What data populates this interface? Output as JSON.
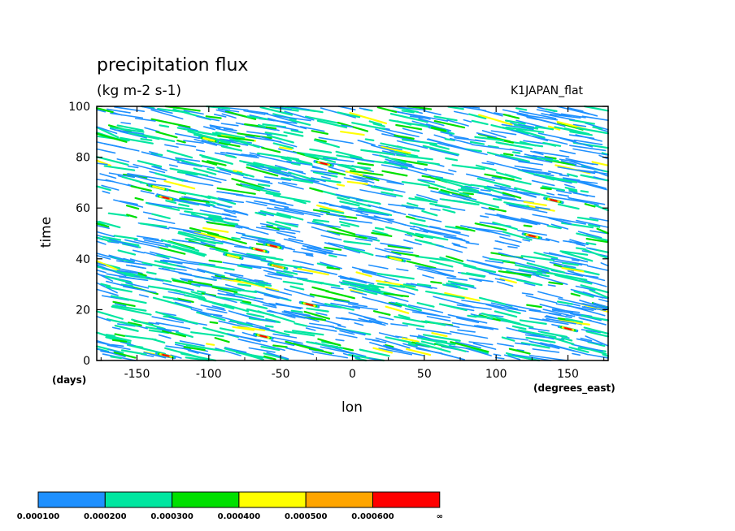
{
  "chart_data": {
    "type": "heatmap",
    "title": "precipitation flux",
    "subtitle": "(kg m-2 s-1)",
    "dataset_label": "K1JAPAN_flat",
    "xlabel": "lon",
    "xunit": "(degrees_east)",
    "ylabel": "time",
    "yunit": "(days)",
    "xlim": [
      -178,
      178
    ],
    "ylim": [
      0,
      100
    ],
    "x_ticks": [
      -150,
      -100,
      -50,
      0,
      50,
      100,
      150
    ],
    "y_ticks": [
      0,
      20,
      40,
      60,
      80,
      100
    ],
    "colorbar": {
      "levels": [
        "0.000100",
        "0.000200",
        "0.000300",
        "0.000400",
        "0.000500",
        "0.000600",
        "∞"
      ],
      "colors": [
        "#1e90ff",
        "#00e6a0",
        "#00e000",
        "#ffff00",
        "#ffa500",
        "#ff0000"
      ]
    },
    "features": [
      {
        "lon": -65,
        "time": 43.5,
        "level": 5
      },
      {
        "lon": -55,
        "time": 45,
        "level": 5
      },
      {
        "lon": -52,
        "time": 37,
        "level": 4
      },
      {
        "lon": -83,
        "time": 41,
        "level": 3
      },
      {
        "lon": -62,
        "time": 9.5,
        "level": 5
      },
      {
        "lon": -30,
        "time": 22,
        "level": 5
      },
      {
        "lon": -130,
        "time": 2,
        "level": 5
      },
      {
        "lon": -130,
        "time": 64,
        "level": 5
      },
      {
        "lon": -20,
        "time": 77.5,
        "level": 5
      },
      {
        "lon": 150,
        "time": 12.5,
        "level": 5
      },
      {
        "lon": 125,
        "time": 49,
        "level": 5
      },
      {
        "lon": 140,
        "time": 63,
        "level": 5
      },
      {
        "lon": -100,
        "time": 87,
        "level": 3
      },
      {
        "lon": -135,
        "time": 68,
        "level": 3
      },
      {
        "lon": 60,
        "time": 91,
        "level": 2
      },
      {
        "lon": 30,
        "time": 40,
        "level": 3
      }
    ]
  }
}
